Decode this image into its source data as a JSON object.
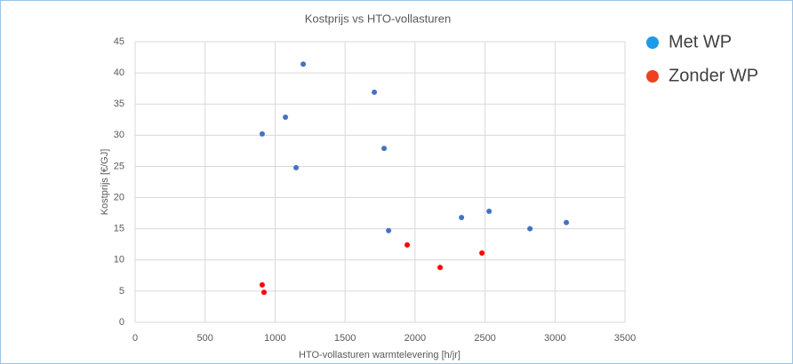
{
  "chart_data": {
    "type": "scatter",
    "title": "Kostprijs vs HTO-vollasturen",
    "x_label": "HTO-vollasturen warmtelevering [h/jr]",
    "y_label": "Kostprijs [€/GJ]",
    "series": [
      {
        "name": "Met WP",
        "color": "#4472c4",
        "x": [
          908,
          1074,
          1201,
          1150,
          1709,
          1779,
          1811,
          2332,
          2529,
          2821,
          3081
        ],
        "values": [
          30.2,
          32.9,
          41.4,
          24.8,
          36.9,
          27.9,
          14.7,
          16.8,
          17.8,
          15.0,
          16.0
        ]
      },
      {
        "name": "Zonder WP",
        "color": "#ff0000",
        "x": [
          908,
          921,
          1944,
          2179,
          2478
        ],
        "values": [
          6.0,
          4.8,
          12.4,
          8.8,
          11.1
        ]
      }
    ],
    "legend_colors": [
      "#1e9be8",
      "#f04020"
    ],
    "xlim": [
      0,
      3500
    ],
    "xticks": [
      0,
      500,
      1000,
      1500,
      2000,
      2500,
      3000,
      3500
    ],
    "ylim": [
      0,
      45
    ],
    "yticks": [
      0,
      5,
      10,
      15,
      20,
      25,
      30,
      35,
      40,
      45
    ],
    "grid": true,
    "legend": "right"
  }
}
